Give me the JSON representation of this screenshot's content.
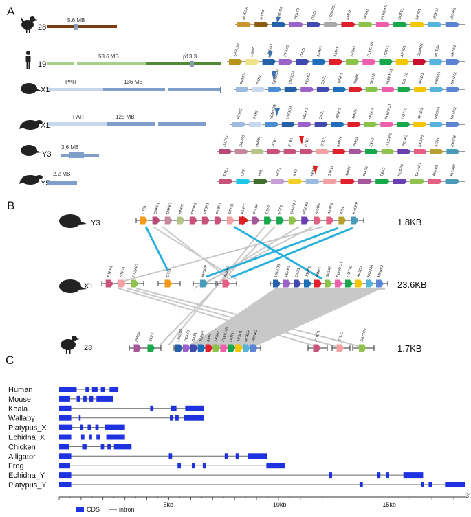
{
  "panels": {
    "a": "A",
    "b": "B",
    "c": "C"
  },
  "colors": {
    "chicken_chrom": "#7a3a12",
    "chrom_light": "#c7d6ea",
    "chrom_mid": "#7f9ec9",
    "human_light": "#a8cf8a",
    "human_dark": "#4f8a34",
    "centromere": "#8a9bb5",
    "cds": "#1f32e0",
    "intron": "#666666",
    "grey_link": "#c8c8c8",
    "cyan_link": "#2ab0dc",
    "blue_marker": "#3a6fb0",
    "red_marker": "#dd1f1f"
  },
  "gene_colors": {
    "MUCSA": "#c9962f",
    "unchar": "#8a5c12",
    "LINGO3": "#2561a8",
    "PEAK3": "#9b62c9",
    "OAZ1": "#3f49b0",
    "CRAP251": "#a8a8a8",
    "AMHX": "#e0202b",
    "SF3A2": "#8ac24a",
    "PLEKHJ1": "#ee5fab",
    "DOT1L": "#17a84b",
    "AP3D1": "#f2c600",
    "MOB3A": "#56b3dc",
    "MKNK2": "#5b84d4",
    "SPPL2B": "#b8941e",
    "LSM7": "#efe28a",
    "JSRP1": "#1c6fb8",
    "IZUMO4": "#c8102e",
    "PRMG": "#9bbbe0",
    "SYN2": "#c7d8f0",
    "SEMA3G": "#4c8ed6",
    "DAPK1": "#b84a78",
    "DAPK3": "#c48a9a",
    "HNRK": "#b5c58a",
    "PTB1": "#c8527a",
    "PTBP1": "#c8527a",
    "STK11": "#f3a1a3",
    "AMHY": "#e0202b",
    "PIAS4": "#a8569a",
    "EEF2": "#17a84b",
    "DAZAP1": "#8fc24f",
    "PCGP3": "#6a3fb2",
    "AKAP8": "#e35f84",
    "ATH-L": "#b5a030",
    "ATH": "#b5a030",
    "KHSRP": "#4b9bb8",
    "UPF1": "#1ec8e8",
    "ENL": "#3f6e2c",
    "RFX1": "#c79fd8",
    "ILF3": "#f2d22a",
    "CTSL": "#f59a17",
    "DAPK": "#cfe0a8",
    "HNRPK": "#a5c68a",
    "KHSRP2": "#58a8c8",
    "JSRP": "#1c6fb8",
    "AMH": "#e0202b",
    "generic": "#7f7f7f"
  },
  "panel_a": {
    "rows": [
      {
        "label": "28",
        "size": "5.6 MB",
        "genes": [
          "MUCSA",
          "unchar",
          "LINGO3",
          "PEAK3",
          "OAZ1",
          "CRAP251",
          "AMHX",
          "SF3A2",
          "PLEKHJ1",
          "DOT1L",
          "AP3D1",
          "MOB3A",
          "MKNK2"
        ]
      },
      {
        "label": "19",
        "size": "58.6 MB",
        "band": "p13.3",
        "genes": [
          "SPPL2B",
          "LSM7",
          "LINGO3",
          "PEAK3",
          "OAZ1",
          "JSRP1",
          "AMHX",
          "SF3A2",
          "PLEKHJ1",
          "DOT1L",
          "AP3D1",
          "IZUMO4",
          "MOB3A",
          "MKNK2"
        ]
      },
      {
        "label": "X1",
        "region": "PAR",
        "size": "136 MB",
        "genes": [
          "PRMG",
          "SYN2",
          "SEMA3G",
          "LINGO3",
          "PEAK3",
          "OAZ1",
          "JSRP1",
          "AMHX",
          "SF3A2",
          "PLEKHJ1",
          "DOT1L",
          "AP3D1",
          "MOB3A",
          "MKNK2"
        ]
      },
      {
        "label": "X1",
        "region": "PAR",
        "size": "125 MB",
        "genes": [
          "PRMG",
          "SYN2",
          "SEMA3G",
          "LINGO3",
          "PEAK3",
          "OAZ1",
          "JSRP1",
          "AMHX",
          "SF3A2",
          "PLEKHJ1",
          "DOT1L",
          "AP3D1",
          "MOB3A",
          "MKNK2"
        ]
      },
      {
        "label": "Y3",
        "size": "3.6 MB",
        "genes": [
          "DAPK1",
          "DAPK3",
          "HNRK",
          "PTB1",
          "PTB1",
          "PTB1",
          "STK11",
          "AMHY",
          "PIAS4",
          "EEF2",
          "DAZAP1",
          "PCGP3",
          "AKAP8",
          "ATH-L",
          "KHSRP"
        ]
      },
      {
        "label": "Y5",
        "size": "2.2 MB",
        "genes": [
          "PTB1",
          "UPF1",
          "ENL",
          "RFX1",
          "ILF3",
          "PRMG",
          "STK11",
          "AMHY",
          "PIAS4",
          "EEF2",
          "PCGP3",
          "DAZAP1",
          "AKAP8",
          "KHSRP"
        ]
      }
    ]
  },
  "panel_b": {
    "rows": [
      {
        "label": "Y3",
        "size": "1.8KB",
        "genes": [
          "CTSL",
          "DAPK1",
          "DAPK3",
          "HNRK",
          "PTBP1",
          "PTBP1",
          "PTBP1",
          "STK11",
          "AMHY",
          "PIAS4",
          "EEF2",
          "EEF2",
          "DAZAP1",
          "PCGP3",
          "AKAP8",
          "AKAP8",
          "ATH",
          "KHSRP"
        ]
      },
      {
        "label": "X1",
        "size": "23.6KB",
        "genes": [
          "PTBP1",
          "STK11",
          "DAZAP1",
          "CTSL",
          "KHSRP",
          "AKAP8",
          "LINGO3",
          "PEAK3",
          "OAZ1",
          "JSRP1",
          "AMHX",
          "SF3A2",
          "PLEKHJ1",
          "DOT1L",
          "AP3D1",
          "MOB3A",
          "MKNK2"
        ]
      },
      {
        "label": "28",
        "size": "1.7KB",
        "genes": [
          "PIAS4",
          "EEF2",
          "LINGO3",
          "PEAK3",
          "OAZ1",
          "JSRP1",
          "AMH",
          "SF3A2",
          "PLEKHJ1",
          "DOT1L",
          "AP3D1",
          "MOB3A",
          "MKNK2",
          "PTBP1",
          "STK11",
          "DAZAP1"
        ]
      }
    ]
  },
  "chart_data": {
    "type": "gene-structure",
    "xlim": [
      0,
      18.5
    ],
    "ticks": [
      {
        "value": 5,
        "label": "5kb"
      },
      {
        "value": 10,
        "label": "10kb"
      },
      {
        "value": 15,
        "label": "15kb"
      }
    ],
    "end_label": "3'",
    "legend": [
      {
        "name": "CDS",
        "kind": "box"
      },
      {
        "name": "intron",
        "kind": "line"
      }
    ],
    "series": [
      {
        "name": "Human",
        "length": 2.7,
        "exons": [
          [
            0,
            0.8
          ],
          [
            1.2,
            1.35
          ],
          [
            1.5,
            1.75
          ],
          [
            1.9,
            2.1
          ],
          [
            2.3,
            2.7
          ]
        ]
      },
      {
        "name": "Mouse",
        "length": 2.45,
        "exons": [
          [
            0,
            0.5
          ],
          [
            0.8,
            0.95
          ],
          [
            1.1,
            1.25
          ],
          [
            1.35,
            1.55
          ],
          [
            1.7,
            2.45
          ]
        ]
      },
      {
        "name": "Koala",
        "length": 6.6,
        "exons": [
          [
            0,
            0.55
          ],
          [
            4.15,
            4.3
          ],
          [
            5.1,
            5.35
          ],
          [
            5.75,
            6.6
          ]
        ]
      },
      {
        "name": "Wallaby",
        "length": 6.6,
        "exons": [
          [
            0,
            0.55
          ],
          [
            0.9,
            0.98
          ],
          [
            5.05,
            5.2
          ],
          [
            5.3,
            5.45
          ],
          [
            5.7,
            6.6
          ]
        ]
      },
      {
        "name": "Platypus_X",
        "length": 3.0,
        "exons": [
          [
            0,
            0.6
          ],
          [
            0.95,
            1.1
          ],
          [
            1.3,
            1.45
          ],
          [
            1.65,
            1.8
          ],
          [
            2.1,
            3.0
          ]
        ]
      },
      {
        "name": "Echidna_X",
        "length": 3.0,
        "exons": [
          [
            0,
            0.55
          ],
          [
            1.0,
            1.15
          ],
          [
            1.35,
            1.5
          ],
          [
            1.7,
            1.85
          ],
          [
            2.15,
            3.0
          ]
        ]
      },
      {
        "name": "Chicken",
        "length": 3.3,
        "exons": [
          [
            0,
            0.45
          ],
          [
            1.05,
            1.25
          ],
          [
            1.9,
            2.05
          ],
          [
            2.2,
            2.35
          ],
          [
            2.5,
            3.3
          ]
        ]
      },
      {
        "name": "Alligator",
        "length": 9.5,
        "exons": [
          [
            0,
            0.55
          ],
          [
            5.0,
            5.15
          ],
          [
            7.55,
            7.7
          ],
          [
            8.05,
            8.2
          ],
          [
            8.6,
            9.5
          ]
        ]
      },
      {
        "name": "Frog",
        "length": 10.3,
        "exons": [
          [
            0,
            0.5
          ],
          [
            5.4,
            5.55
          ],
          [
            6.05,
            6.2
          ],
          [
            6.55,
            6.7
          ],
          [
            9.45,
            10.3
          ]
        ]
      },
      {
        "name": "Echidna_Y",
        "length": 16.6,
        "exons": [
          [
            0,
            0.55
          ],
          [
            12.3,
            12.45
          ],
          [
            14.5,
            14.65
          ],
          [
            14.9,
            15.05
          ],
          [
            15.7,
            16.6
          ]
        ]
      },
      {
        "name": "Platypus_Y",
        "length": 18.5,
        "exons": [
          [
            0,
            0.55
          ],
          [
            13.7,
            13.85
          ],
          [
            16.5,
            16.65
          ],
          [
            16.85,
            17.0
          ],
          [
            17.6,
            18.5
          ]
        ]
      }
    ]
  }
}
